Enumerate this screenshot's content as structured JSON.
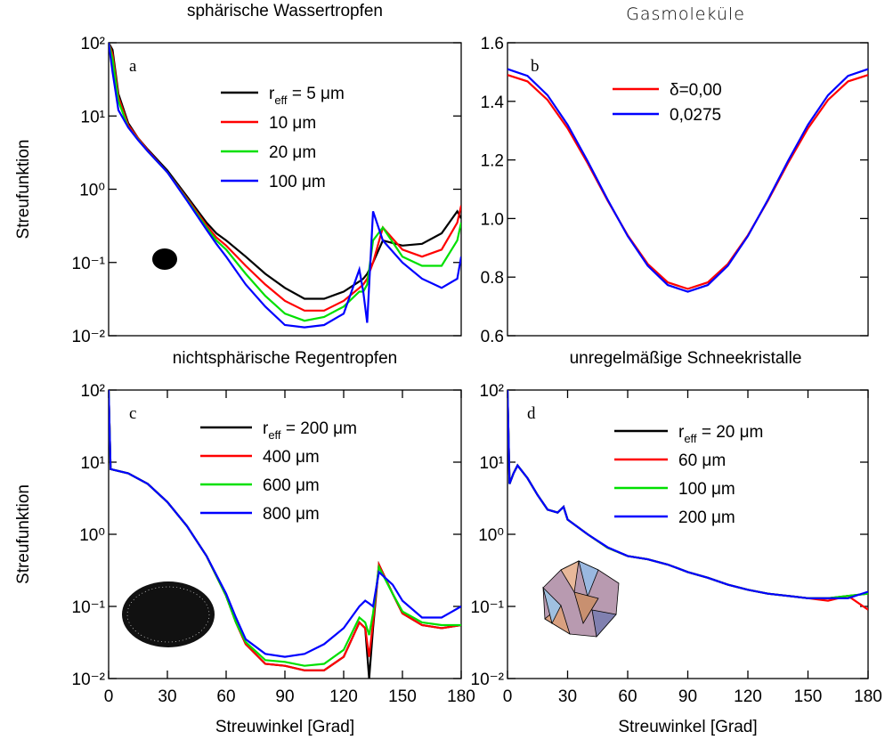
{
  "chart_data": [
    {
      "type": "line",
      "title": "sphärische Wassertropfen",
      "annotation": "a",
      "ylabel": "Streufunktion",
      "log_y": true,
      "xlim": [
        0,
        180
      ],
      "ylim": [
        0.01,
        100
      ],
      "yticks": [
        {
          "value": 0.01,
          "label": "10⁻²"
        },
        {
          "value": 0.1,
          "label": "10⁻¹"
        },
        {
          "value": 1,
          "label": "10⁰"
        },
        {
          "value": 10,
          "label": "10¹"
        },
        {
          "value": 100,
          "label": "10²"
        }
      ],
      "x": [
        0,
        2,
        5,
        10,
        15,
        20,
        30,
        40,
        50,
        55,
        60,
        70,
        80,
        90,
        100,
        110,
        120,
        128,
        130,
        132,
        135,
        140,
        150,
        160,
        170,
        178,
        180
      ],
      "series": [
        {
          "name": "reff = 5 μm",
          "color": "#000000",
          "values": [
            100,
            80,
            20,
            8,
            5,
            3.5,
            1.8,
            0.8,
            0.35,
            0.25,
            0.2,
            0.12,
            0.07,
            0.045,
            0.032,
            0.032,
            0.04,
            0.055,
            0.06,
            0.07,
            0.1,
            0.2,
            0.17,
            0.18,
            0.25,
            0.5,
            0.4
          ]
        },
        {
          "name": "10 μm",
          "color": "#ff0000",
          "values": [
            100,
            70,
            18,
            7.5,
            5,
            3.4,
            1.7,
            0.75,
            0.32,
            0.22,
            0.17,
            0.09,
            0.05,
            0.03,
            0.022,
            0.022,
            0.03,
            0.045,
            0.05,
            0.06,
            0.1,
            0.3,
            0.15,
            0.12,
            0.15,
            0.35,
            0.6
          ]
        },
        {
          "name": "20 μm",
          "color": "#00e000",
          "values": [
            100,
            60,
            16,
            7,
            4.8,
            3.3,
            1.7,
            0.72,
            0.3,
            0.2,
            0.15,
            0.07,
            0.035,
            0.02,
            0.016,
            0.018,
            0.025,
            0.04,
            0.04,
            0.05,
            0.2,
            0.3,
            0.12,
            0.09,
            0.09,
            0.2,
            0.35
          ]
        },
        {
          "name": "100 μm",
          "color": "#0000ff",
          "values": [
            100,
            40,
            12,
            7,
            4.7,
            3.3,
            1.7,
            0.7,
            0.28,
            0.18,
            0.12,
            0.05,
            0.025,
            0.014,
            0.013,
            0.014,
            0.02,
            0.08,
            0.04,
            0.015,
            0.5,
            0.2,
            0.1,
            0.06,
            0.045,
            0.06,
            0.12
          ]
        }
      ]
    },
    {
      "type": "line",
      "title": "Gasmoleküle",
      "annotation": "b",
      "log_y": false,
      "xlim": [
        0,
        180
      ],
      "ylim": [
        0.6,
        1.6
      ],
      "yticks": [
        {
          "value": 0.6,
          "label": "0.6"
        },
        {
          "value": 0.8,
          "label": "0.8"
        },
        {
          "value": 1,
          "label": "1.0"
        },
        {
          "value": 1.2,
          "label": "1.2"
        },
        {
          "value": 1.4,
          "label": "1.4"
        },
        {
          "value": 1.6,
          "label": "1.6"
        }
      ],
      "x": [
        0,
        10,
        20,
        30,
        40,
        50,
        60,
        70,
        80,
        90,
        100,
        110,
        120,
        130,
        140,
        150,
        160,
        170,
        180
      ],
      "series": [
        {
          "name": "δ=0,00",
          "color": "#ff0000",
          "values": [
            1.49,
            1.468,
            1.405,
            1.308,
            1.189,
            1.061,
            0.943,
            0.845,
            0.782,
            0.76,
            0.782,
            0.845,
            0.943,
            1.061,
            1.189,
            1.308,
            1.405,
            1.468,
            1.49
          ]
        },
        {
          "name": "0,0275",
          "color": "#0000ff",
          "values": [
            1.51,
            1.487,
            1.421,
            1.32,
            1.196,
            1.064,
            0.94,
            0.839,
            0.773,
            0.75,
            0.773,
            0.839,
            0.94,
            1.064,
            1.196,
            1.32,
            1.421,
            1.487,
            1.51
          ]
        }
      ]
    },
    {
      "type": "line",
      "title": "nichtsphärische Regentropfen",
      "annotation": "c",
      "ylabel": "Streufunktion",
      "xlabel": "Streuwinkel [Grad]",
      "log_y": true,
      "xlim": [
        0,
        180
      ],
      "ylim": [
        0.01,
        100
      ],
      "xticks": [
        0,
        30,
        60,
        90,
        120,
        150,
        180
      ],
      "yticks": [
        {
          "value": 0.01,
          "label": "10⁻²"
        },
        {
          "value": 0.1,
          "label": "10⁻¹"
        },
        {
          "value": 1,
          "label": "10⁰"
        },
        {
          "value": 10,
          "label": "10¹"
        },
        {
          "value": 100,
          "label": "10²"
        }
      ],
      "x": [
        0,
        1,
        10,
        20,
        30,
        40,
        50,
        60,
        65,
        70,
        80,
        90,
        100,
        110,
        120,
        128,
        131,
        133,
        135,
        138,
        145,
        150,
        160,
        170,
        180
      ],
      "series": [
        {
          "name": "reff = 200 μm",
          "color": "#000000",
          "values": [
            100,
            8,
            7,
            5,
            2.8,
            1.3,
            0.5,
            0.14,
            0.06,
            0.03,
            0.016,
            0.015,
            0.013,
            0.013,
            0.02,
            0.06,
            0.05,
            0.01,
            0.05,
            0.38,
            0.15,
            0.08,
            0.055,
            0.05,
            0.055
          ]
        },
        {
          "name": "400 μm",
          "color": "#ff0000",
          "values": [
            100,
            8,
            7,
            5,
            2.8,
            1.3,
            0.5,
            0.14,
            0.06,
            0.03,
            0.016,
            0.015,
            0.013,
            0.013,
            0.02,
            0.06,
            0.05,
            0.02,
            0.06,
            0.38,
            0.15,
            0.08,
            0.055,
            0.05,
            0.055
          ]
        },
        {
          "name": "600 μm",
          "color": "#00e000",
          "values": [
            100,
            8,
            7,
            5,
            2.8,
            1.3,
            0.5,
            0.14,
            0.06,
            0.032,
            0.018,
            0.017,
            0.015,
            0.016,
            0.025,
            0.07,
            0.06,
            0.04,
            0.08,
            0.35,
            0.15,
            0.085,
            0.06,
            0.055,
            0.055
          ]
        },
        {
          "name": "800 μm",
          "color": "#0000ff",
          "values": [
            100,
            8,
            7,
            5,
            2.8,
            1.3,
            0.5,
            0.15,
            0.07,
            0.035,
            0.022,
            0.02,
            0.022,
            0.03,
            0.05,
            0.1,
            0.12,
            0.11,
            0.1,
            0.3,
            0.2,
            0.12,
            0.07,
            0.07,
            0.1
          ]
        }
      ]
    },
    {
      "type": "line",
      "title": "unregelmäßige Schneekristalle",
      "annotation": "d",
      "xlabel": "Streuwinkel [Grad]",
      "log_y": true,
      "xlim": [
        0,
        180
      ],
      "ylim": [
        0.01,
        100
      ],
      "xticks": [
        0,
        30,
        60,
        90,
        120,
        150,
        180
      ],
      "yticks": [
        {
          "value": 0.01,
          "label": "10⁻²"
        },
        {
          "value": 0.1,
          "label": "10⁻¹"
        },
        {
          "value": 1,
          "label": "10⁰"
        },
        {
          "value": 10,
          "label": "10¹"
        },
        {
          "value": 100,
          "label": "10²"
        }
      ],
      "x": [
        0,
        1,
        3,
        5,
        10,
        15,
        20,
        25,
        28,
        30,
        40,
        50,
        60,
        70,
        80,
        90,
        100,
        110,
        120,
        130,
        140,
        150,
        160,
        170,
        180
      ],
      "series": [
        {
          "name": "reff = 20 μm",
          "color": "#000000",
          "values": [
            100,
            5,
            7,
            9,
            6,
            3.5,
            2.2,
            2,
            2.4,
            1.6,
            1,
            0.65,
            0.5,
            0.45,
            0.38,
            0.3,
            0.25,
            0.2,
            0.17,
            0.15,
            0.14,
            0.13,
            0.13,
            0.14,
            0.15
          ]
        },
        {
          "name": "60 μm",
          "color": "#ff0000",
          "values": [
            100,
            5,
            7,
            9,
            6,
            3.5,
            2.2,
            2,
            2.4,
            1.6,
            1,
            0.65,
            0.5,
            0.45,
            0.38,
            0.3,
            0.25,
            0.2,
            0.17,
            0.15,
            0.14,
            0.13,
            0.12,
            0.14,
            0.09
          ]
        },
        {
          "name": "100 μm",
          "color": "#00e000",
          "values": [
            100,
            5,
            7,
            9,
            6,
            3.5,
            2.2,
            2,
            2.4,
            1.6,
            1,
            0.65,
            0.5,
            0.45,
            0.38,
            0.3,
            0.25,
            0.2,
            0.17,
            0.15,
            0.14,
            0.13,
            0.13,
            0.14,
            0.15
          ]
        },
        {
          "name": "200 μm",
          "color": "#0000ff",
          "values": [
            100,
            5,
            7,
            9,
            6,
            3.5,
            2.2,
            2,
            2.4,
            1.6,
            1,
            0.66,
            0.5,
            0.45,
            0.38,
            0.3,
            0.25,
            0.2,
            0.17,
            0.15,
            0.14,
            0.13,
            0.13,
            0.13,
            0.16
          ]
        }
      ]
    }
  ]
}
